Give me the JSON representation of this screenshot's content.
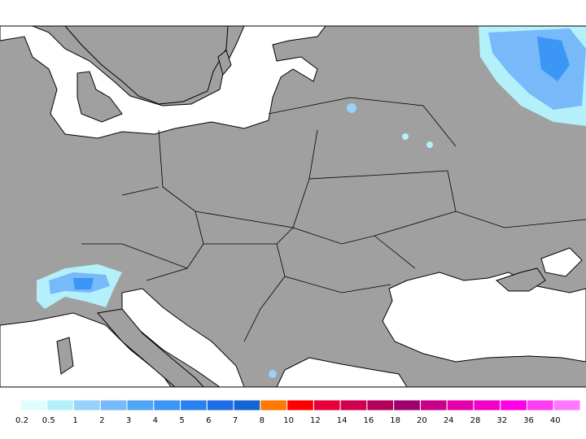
{
  "map": {
    "legend": {
      "levels": [
        0.2,
        0.5,
        1,
        2,
        3,
        4,
        5,
        6,
        7,
        8,
        10,
        12,
        14,
        16,
        18,
        20,
        24,
        28,
        32,
        36,
        40
      ],
      "colors": [
        "#e0fcff",
        "#b4f0fa",
        "#96d2fa",
        "#78b9fa",
        "#50a5f5",
        "#3c96f5",
        "#2882f0",
        "#1e6ee6",
        "#1464d2",
        "#ff7800",
        "#ff0000",
        "#e6003c",
        "#d20050",
        "#b4005a",
        "#a0006e",
        "#c8008c",
        "#e600aa",
        "#f000c8",
        "#ff00e6",
        "#ff3cf5",
        "#ff78ff"
      ]
    }
  }
}
